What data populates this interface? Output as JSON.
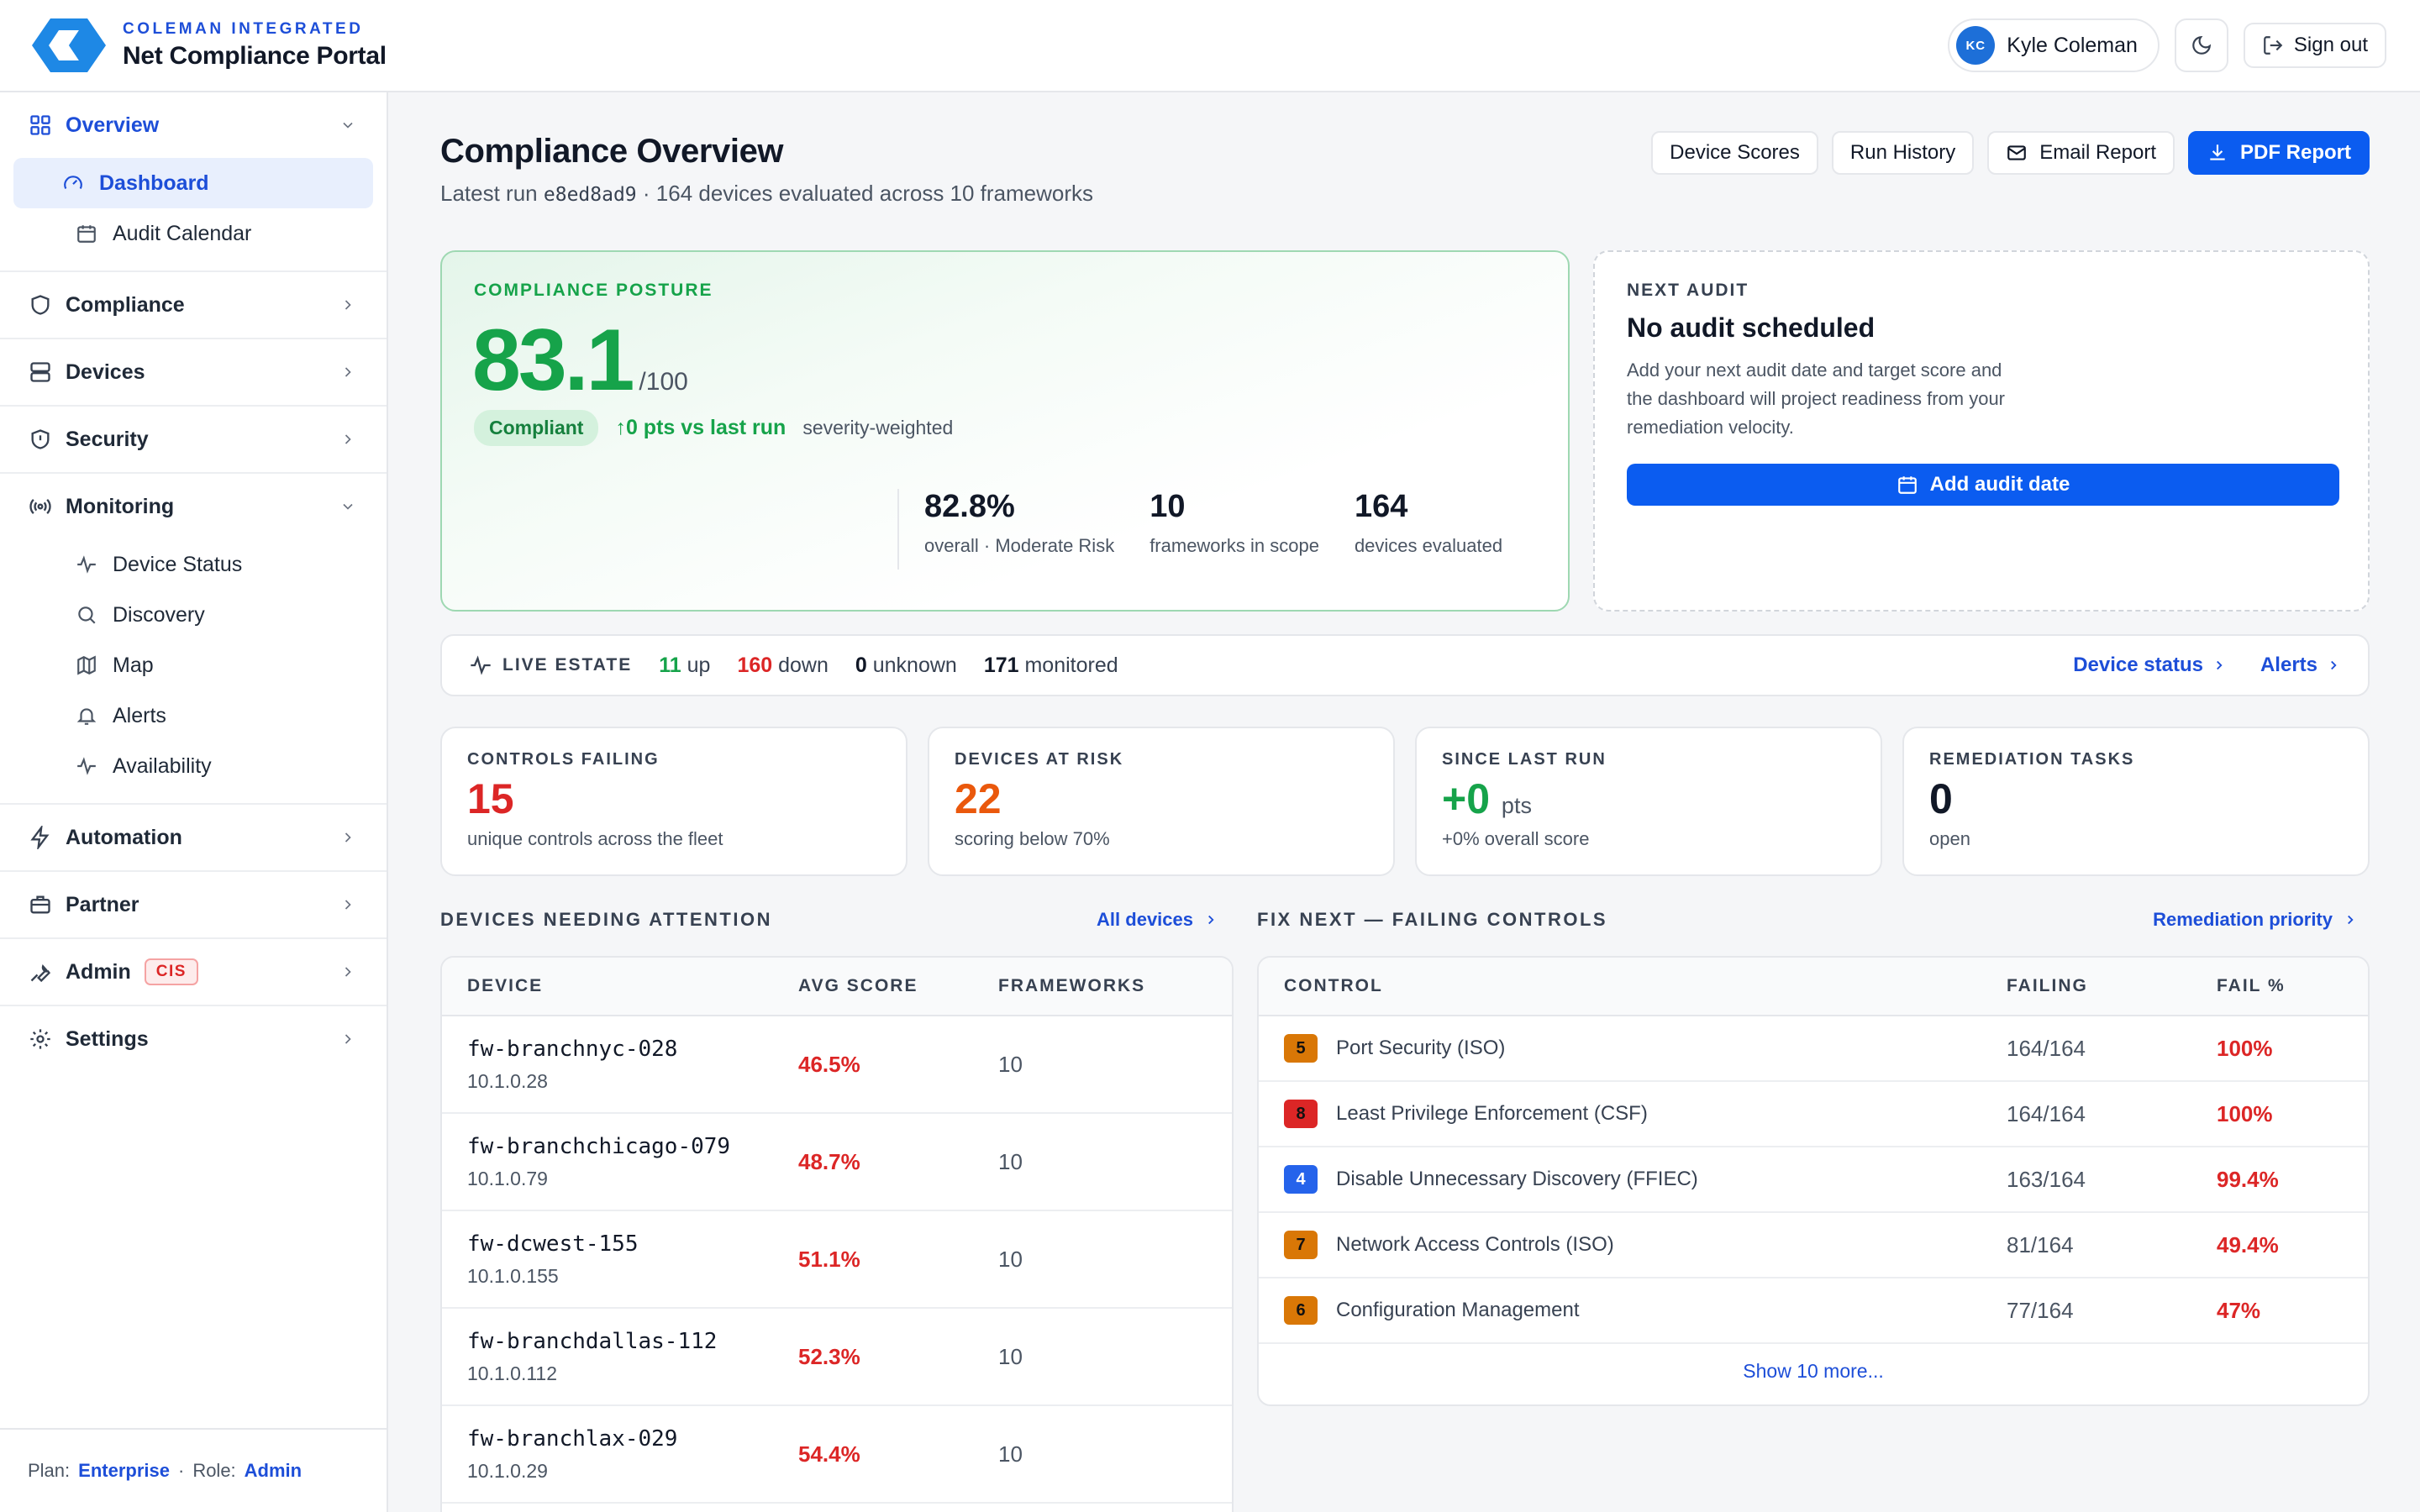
{
  "brand": {
    "org": "COLEMAN INTEGRATED",
    "name": "Net Compliance Portal"
  },
  "user": {
    "initials": "KC",
    "name": "Kyle Coleman",
    "signout_label": "Sign out"
  },
  "sidebar": {
    "groups": [
      {
        "label": "Overview",
        "icon": "grid-icon",
        "expanded": true,
        "items": [
          {
            "label": "Dashboard",
            "icon": "gauge-icon"
          },
          {
            "label": "Audit Calendar",
            "icon": "calendar-icon"
          }
        ]
      },
      {
        "label": "Compliance",
        "icon": "shield-icon"
      },
      {
        "label": "Devices",
        "icon": "server-icon"
      },
      {
        "label": "Security",
        "icon": "shield-check-icon"
      },
      {
        "label": "Monitoring",
        "icon": "broadcast-icon",
        "expanded": true,
        "items": [
          {
            "label": "Device Status",
            "icon": "pulse-icon"
          },
          {
            "label": "Discovery",
            "icon": "search-icon"
          },
          {
            "label": "Map",
            "icon": "map-icon"
          },
          {
            "label": "Alerts",
            "icon": "bell-icon"
          },
          {
            "label": "Availability",
            "icon": "pulse-icon"
          }
        ]
      },
      {
        "label": "Automation",
        "icon": "bolt-icon"
      },
      {
        "label": "Partner",
        "icon": "briefcase-icon"
      },
      {
        "label": "Admin",
        "icon": "wrench-icon",
        "badge": "CIS"
      },
      {
        "label": "Settings",
        "icon": "gear-icon"
      }
    ],
    "footer": {
      "plan_label": "Plan:",
      "plan": "Enterprise",
      "role_label": "Role:",
      "role": "Admin"
    }
  },
  "page": {
    "title": "Compliance Overview",
    "subtitle_prefix": "Latest run",
    "run_id": "e8ed8ad9",
    "subtitle_suffix": "· 164 devices evaluated across 10 frameworks",
    "actions": {
      "device_scores": "Device Scores",
      "run_history": "Run History",
      "email_report": "Email Report",
      "pdf_report": "PDF Report"
    }
  },
  "posture": {
    "eyebrow": "COMPLIANCE POSTURE",
    "score": "83.1",
    "score_of": "/100",
    "status": "Compliant",
    "delta": "0 pts vs last run",
    "note": "severity-weighted",
    "stats": [
      {
        "value": "82.8%",
        "label": "overall · Moderate Risk"
      },
      {
        "value": "10",
        "label": "frameworks in scope"
      },
      {
        "value": "164",
        "label": "devices evaluated"
      }
    ]
  },
  "audit": {
    "eyebrow": "NEXT AUDIT",
    "title": "No audit scheduled",
    "desc": "Add your next audit date and target score and the dashboard will project readiness from your remediation velocity.",
    "button": "Add audit date"
  },
  "live": {
    "eyebrow": "LIVE ESTATE",
    "up": "11",
    "up_label": "up",
    "down": "160",
    "down_label": "down",
    "unknown": "0",
    "unknown_label": "unknown",
    "monitored": "171",
    "monitored_label": "monitored",
    "link_status": "Device status",
    "link_alerts": "Alerts"
  },
  "kpis": [
    {
      "eyebrow": "CONTROLS FAILING",
      "value": "15",
      "unit": "",
      "label": "unique controls across the fleet",
      "color": "#dc2626"
    },
    {
      "eyebrow": "DEVICES AT RISK",
      "value": "22",
      "unit": "",
      "label": "scoring below 70%",
      "color": "#ea580c"
    },
    {
      "eyebrow": "SINCE LAST RUN",
      "value": "+0",
      "unit": "pts",
      "label": "+0% overall score",
      "color": "#16a34a"
    },
    {
      "eyebrow": "REMEDIATION TASKS",
      "value": "0",
      "unit": "",
      "label": "open",
      "color": "#111827"
    }
  ],
  "devices_section": {
    "title": "DEVICES NEEDING ATTENTION",
    "link": "All devices",
    "columns": [
      "DEVICE",
      "AVG SCORE",
      "FRAMEWORKS"
    ],
    "rows": [
      {
        "name": "fw-branchnyc-028",
        "ip": "10.1.0.28",
        "score": "46.5%",
        "frameworks": "10"
      },
      {
        "name": "fw-branchchicago-079",
        "ip": "10.1.0.79",
        "score": "48.7%",
        "frameworks": "10"
      },
      {
        "name": "fw-dcwest-155",
        "ip": "10.1.0.155",
        "score": "51.1%",
        "frameworks": "10"
      },
      {
        "name": "fw-branchdallas-112",
        "ip": "10.1.0.112",
        "score": "52.3%",
        "frameworks": "10"
      },
      {
        "name": "fw-branchlax-029",
        "ip": "10.1.0.29",
        "score": "54.4%",
        "frameworks": "10"
      }
    ]
  },
  "controls_section": {
    "title": "FIX NEXT — FAILING CONTROLS",
    "link": "Remediation priority",
    "columns": [
      "CONTROL",
      "FAILING",
      "FAIL %"
    ],
    "rows": [
      {
        "sev": "5",
        "sev_color": "#d97706",
        "name": "Port Security (ISO)",
        "failing": "164/164",
        "pct": "100%"
      },
      {
        "sev": "8",
        "sev_color": "#dc2626",
        "name": "Least Privilege Enforcement (CSF)",
        "failing": "164/164",
        "pct": "100%"
      },
      {
        "sev": "4",
        "sev_color": "#2563eb",
        "name": "Disable Unnecessary Discovery (FFIEC)",
        "failing": "163/164",
        "pct": "99.4%"
      },
      {
        "sev": "7",
        "sev_color": "#d97706",
        "name": "Network Access Controls (ISO)",
        "failing": "81/164",
        "pct": "49.4%"
      },
      {
        "sev": "6",
        "sev_color": "#d97706",
        "name": "Configuration Management",
        "failing": "77/164",
        "pct": "47%"
      }
    ],
    "show_more": "Show 10 more..."
  }
}
